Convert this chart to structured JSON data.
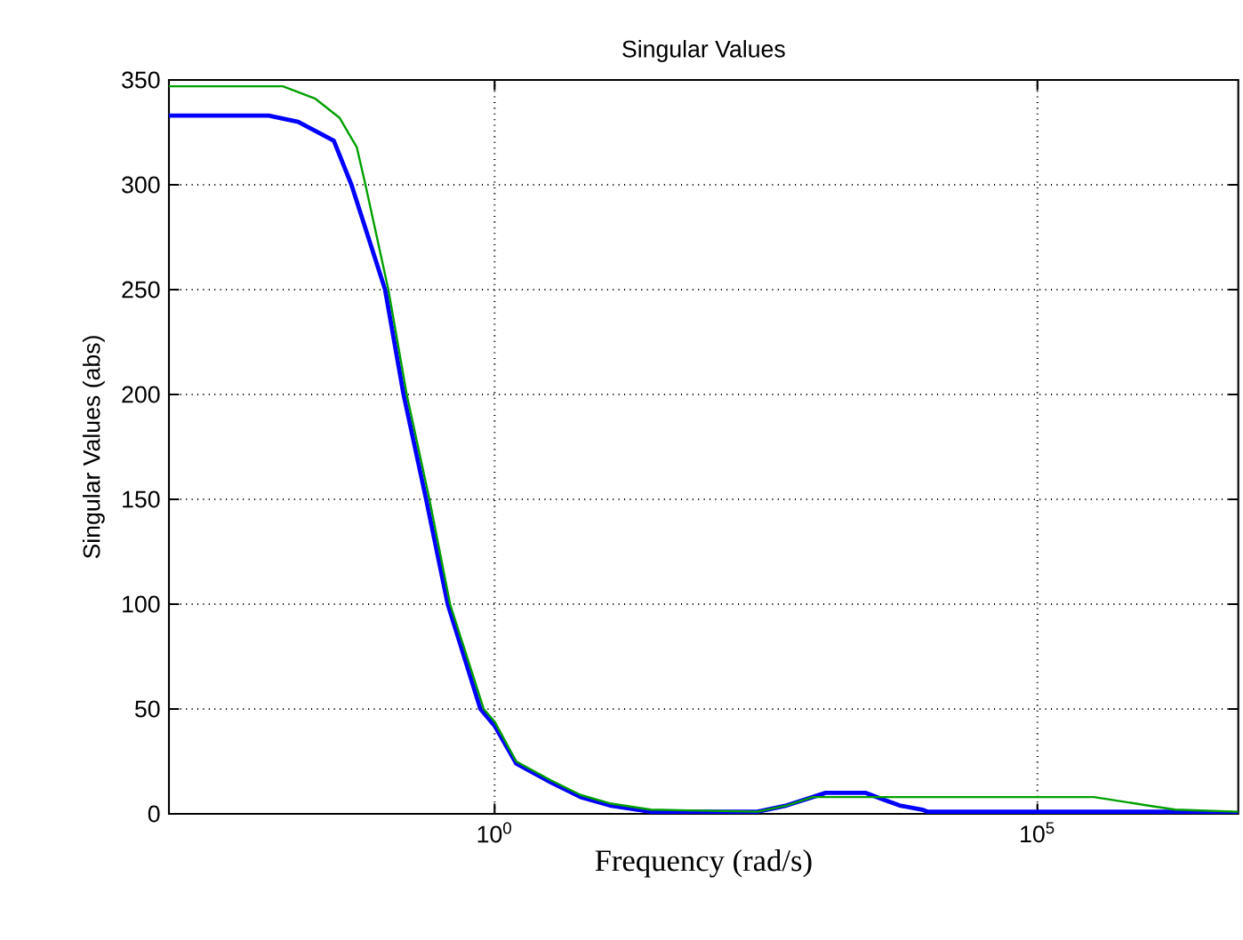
{
  "chart_data": {
    "type": "line",
    "title": "Singular Values",
    "xlabel": "Frequency (rad/s)",
    "ylabel": "Singular Values (abs)",
    "log": "x",
    "grid": true,
    "line_style": "solid",
    "marker": "none",
    "xlim": [
      0.001,
      7080000
    ],
    "xticks": [
      {
        "value": 1,
        "label": "10$^{0}$"
      },
      {
        "value": 100000,
        "label": "10$^{5}$"
      }
    ],
    "ylim": [
      0,
      350
    ],
    "yticks": [
      0,
      50,
      100,
      150,
      200,
      250,
      300,
      350
    ],
    "series": [
      {
        "color": "#0000ff",
        "x": [
          0.001,
          0.0083,
          0.0155,
          0.033,
          0.048,
          0.098,
          0.145,
          0.234,
          0.37,
          0.74,
          1,
          1.58,
          3.3,
          6.2,
          11.5,
          27.5,
          263,
          490,
          850,
          1120,
          2630,
          3720,
          5370,
          8710,
          9770,
          1860000,
          7080000
        ],
        "values": [
          333,
          333,
          330,
          321,
          300,
          250,
          200,
          150,
          100,
          50,
          42,
          24,
          15,
          8,
          4,
          1,
          1,
          4,
          8,
          10,
          10,
          7,
          4,
          2,
          1,
          1,
          0
        ]
      },
      {
        "color": "#00a000",
        "x": [
          0.001,
          0.0112,
          0.0224,
          0.0372,
          0.0537,
          0.0646,
          0.105,
          0.155,
          0.251,
          0.389,
          0.794,
          1,
          1.58,
          3.3,
          6.2,
          11.5,
          27.5,
          263,
          490,
          850,
          1200,
          331000,
          589000,
          1020000,
          1860000,
          7080000
        ],
        "values": [
          347,
          347,
          341,
          332,
          318,
          300,
          250,
          200,
          150,
          100,
          50,
          44,
          25,
          16,
          9,
          5,
          2,
          1,
          4,
          8,
          8,
          8,
          6,
          4,
          2,
          1
        ]
      }
    ]
  }
}
